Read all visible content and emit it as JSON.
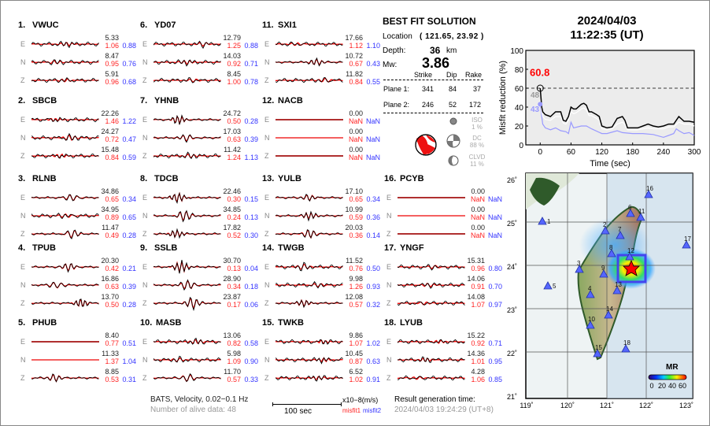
{
  "stations": [
    {
      "num": "1.",
      "name": "VWUC",
      "comps": [
        {
          "c": "E",
          "amp": "5.33",
          "m1": "1.06",
          "m2": "0.88"
        },
        {
          "c": "N",
          "amp": "8.47",
          "m1": "0.95",
          "m2": "0.76"
        },
        {
          "c": "Z",
          "amp": "5.91",
          "m1": "0.96",
          "m2": "0.68"
        }
      ]
    },
    {
      "num": "2.",
      "name": "SBCB",
      "comps": [
        {
          "c": "E",
          "amp": "22.26",
          "m1": "1.46",
          "m2": "1.22"
        },
        {
          "c": "N",
          "amp": "24.27",
          "m1": "0.72",
          "m2": "0.47"
        },
        {
          "c": "Z",
          "amp": "15.48",
          "m1": "0.84",
          "m2": "0.59"
        }
      ]
    },
    {
      "num": "3.",
      "name": "RLNB",
      "comps": [
        {
          "c": "E",
          "amp": "34.86",
          "m1": "0.65",
          "m2": "0.34"
        },
        {
          "c": "N",
          "amp": "34.95",
          "m1": "0.89",
          "m2": "0.65"
        },
        {
          "c": "Z",
          "amp": "11.47",
          "m1": "0.49",
          "m2": "0.28"
        }
      ]
    },
    {
      "num": "4.",
      "name": "TPUB",
      "comps": [
        {
          "c": "E",
          "amp": "20.30",
          "m1": "0.42",
          "m2": "0.21"
        },
        {
          "c": "N",
          "amp": "16.86",
          "m1": "0.63",
          "m2": "0.39"
        },
        {
          "c": "Z",
          "amp": "13.70",
          "m1": "0.50",
          "m2": "0.28"
        }
      ]
    },
    {
      "num": "5.",
      "name": "PHUB",
      "comps": [
        {
          "c": "E",
          "amp": "8.40",
          "m1": "0.77",
          "m2": "0.51",
          "flat": true
        },
        {
          "c": "N",
          "amp": "11.33",
          "m1": "1.37",
          "m2": "1.04",
          "flat": true
        },
        {
          "c": "Z",
          "amp": "8.85",
          "m1": "0.53",
          "m2": "0.31"
        }
      ]
    },
    {
      "num": "6.",
      "name": "YD07",
      "comps": [
        {
          "c": "E",
          "amp": "12.79",
          "m1": "1.25",
          "m2": "0.88"
        },
        {
          "c": "N",
          "amp": "14.03",
          "m1": "0.92",
          "m2": "0.71"
        },
        {
          "c": "Z",
          "amp": "8.45",
          "m1": "1.00",
          "m2": "0.78"
        }
      ]
    },
    {
      "num": "7.",
      "name": "YHNB",
      "comps": [
        {
          "c": "E",
          "amp": "24.72",
          "m1": "0.50",
          "m2": "0.28"
        },
        {
          "c": "N",
          "amp": "17.03",
          "m1": "0.63",
          "m2": "0.39"
        },
        {
          "c": "Z",
          "amp": "11.42",
          "m1": "1.24",
          "m2": "1.13"
        }
      ]
    },
    {
      "num": "8.",
      "name": "TDCB",
      "comps": [
        {
          "c": "E",
          "amp": "22.46",
          "m1": "0.30",
          "m2": "0.15"
        },
        {
          "c": "N",
          "amp": "34.85",
          "m1": "0.24",
          "m2": "0.13"
        },
        {
          "c": "Z",
          "amp": "17.82",
          "m1": "0.52",
          "m2": "0.30"
        }
      ]
    },
    {
      "num": "9.",
      "name": "SSLB",
      "comps": [
        {
          "c": "E",
          "amp": "30.70",
          "m1": "0.13",
          "m2": "0.04"
        },
        {
          "c": "N",
          "amp": "28.90",
          "m1": "0.34",
          "m2": "0.18"
        },
        {
          "c": "Z",
          "amp": "23.87",
          "m1": "0.17",
          "m2": "0.06"
        }
      ]
    },
    {
      "num": "10.",
      "name": "MASB",
      "comps": [
        {
          "c": "E",
          "amp": "13.06",
          "m1": "0.82",
          "m2": "0.58"
        },
        {
          "c": "N",
          "amp": "5.98",
          "m1": "1.09",
          "m2": "0.90"
        },
        {
          "c": "Z",
          "amp": "11.70",
          "m1": "0.57",
          "m2": "0.33"
        }
      ]
    },
    {
      "num": "11.",
      "name": "SXI1",
      "comps": [
        {
          "c": "E",
          "amp": "17.66",
          "m1": "1.12",
          "m2": "1.10"
        },
        {
          "c": "N",
          "amp": "10.72",
          "m1": "0.67",
          "m2": "0.43"
        },
        {
          "c": "Z",
          "amp": "11.82",
          "m1": "0.84",
          "m2": "0.55"
        }
      ]
    },
    {
      "num": "12.",
      "name": "NACB",
      "comps": [
        {
          "c": "E",
          "amp": "0.00",
          "m1": "NaN",
          "m2": "NaN",
          "flat": true
        },
        {
          "c": "N",
          "amp": "0.00",
          "m1": "NaN",
          "m2": "NaN",
          "flat": true
        },
        {
          "c": "Z",
          "amp": "0.00",
          "m1": "NaN",
          "m2": "NaN",
          "flat": true
        }
      ]
    },
    {
      "num": "13.",
      "name": "YULB",
      "comps": [
        {
          "c": "E",
          "amp": "17.10",
          "m1": "0.65",
          "m2": "0.34"
        },
        {
          "c": "N",
          "amp": "10.99",
          "m1": "0.59",
          "m2": "0.36"
        },
        {
          "c": "Z",
          "amp": "20.03",
          "m1": "0.36",
          "m2": "0.14"
        }
      ]
    },
    {
      "num": "14.",
      "name": "TWGB",
      "comps": [
        {
          "c": "E",
          "amp": "11.52",
          "m1": "0.76",
          "m2": "0.50"
        },
        {
          "c": "N",
          "amp": "9.98",
          "m1": "1.26",
          "m2": "0.93"
        },
        {
          "c": "Z",
          "amp": "12.08",
          "m1": "0.57",
          "m2": "0.32"
        }
      ]
    },
    {
      "num": "15.",
      "name": "TWKB",
      "comps": [
        {
          "c": "E",
          "amp": "9.86",
          "m1": "1.07",
          "m2": "1.02"
        },
        {
          "c": "N",
          "amp": "10.45",
          "m1": "0.87",
          "m2": "0.63"
        },
        {
          "c": "Z",
          "amp": "6.52",
          "m1": "1.02",
          "m2": "0.91"
        }
      ]
    },
    {
      "num": "16.",
      "name": "PCYB",
      "comps": [
        {
          "c": "E",
          "amp": "0.00",
          "m1": "NaN",
          "m2": "NaN",
          "flat": true
        },
        {
          "c": "N",
          "amp": "0.00",
          "m1": "NaN",
          "m2": "NaN",
          "flat": true
        },
        {
          "c": "Z",
          "amp": "0.00",
          "m1": "NaN",
          "m2": "NaN",
          "flat": true
        }
      ]
    },
    {
      "num": "17.",
      "name": "YNGF",
      "comps": [
        {
          "c": "E",
          "amp": "15.31",
          "m1": "0.96",
          "m2": "0.80"
        },
        {
          "c": "N",
          "amp": "14.06",
          "m1": "0.91",
          "m2": "0.70"
        },
        {
          "c": "Z",
          "amp": "14.08",
          "m1": "1.07",
          "m2": "0.97"
        }
      ]
    },
    {
      "num": "18.",
      "name": "LYUB",
      "comps": [
        {
          "c": "E",
          "amp": "15.22",
          "m1": "0.92",
          "m2": "0.71"
        },
        {
          "c": "N",
          "amp": "14.36",
          "m1": "1.01",
          "m2": "0.95"
        },
        {
          "c": "Z",
          "amp": "4.28",
          "m1": "1.06",
          "m2": "0.85"
        }
      ]
    }
  ],
  "footer": {
    "network": "BATS, Velocity, 0.02−0.1 Hz",
    "alive": "Number of alive data: 48",
    "scale": "100 sec",
    "unit": "x10−8(m/s)",
    "misfit1": "misfit1",
    "misfit2": "misfit2",
    "gen_label": "Result generation time:",
    "gen_time": "2024/04/03 19:24:29 (UT+8)"
  },
  "solution": {
    "title": "BEST FIT SOLUTION",
    "location_label": "Location",
    "location": "( 121.65,  23.92 )",
    "depth_label": "Depth:",
    "depth": "36",
    "depth_unit": "km",
    "mw_label": "Mw:",
    "mw": "3.86",
    "headers": [
      "Strike",
      "Dip",
      "Rake"
    ],
    "planes": [
      {
        "label": "Plane 1:",
        "strike": "341",
        "dip": "84",
        "rake": "37"
      },
      {
        "label": "Plane 2:",
        "strike": "246",
        "dip": "52",
        "rake": "172"
      }
    ],
    "iso": {
      "label": "ISO",
      "pct": "1  %"
    },
    "dc": {
      "label": "DC",
      "pct": "88 %"
    },
    "clvd": {
      "label": "CLVD",
      "pct": "11 %"
    },
    "colors": {
      "beachball": "#ee1111"
    }
  },
  "header": {
    "date": "2024/04/03",
    "time": "11:22:35  (UT)"
  },
  "chart_data": {
    "type": "line",
    "xlabel": "Time (sec)",
    "ylabel": "Misfit reduction (%)",
    "xlim": [
      -28,
      300
    ],
    "ylim": [
      0,
      100
    ],
    "xticks": [
      0,
      60,
      120,
      180,
      240,
      300
    ],
    "yticks": [
      0,
      20,
      40,
      60,
      80,
      100
    ],
    "reference_line": 60,
    "annotations": {
      "best": "60.8",
      "gray": "48",
      "blue": "43"
    },
    "series": [
      {
        "name": "best",
        "color": "#000000",
        "x": [
          0,
          3,
          5,
          10,
          20,
          30,
          40,
          45,
          50,
          55,
          60,
          65,
          70,
          80,
          85,
          90,
          95,
          100,
          110,
          115,
          120,
          130,
          140,
          150,
          160,
          165,
          170,
          180,
          190,
          200,
          210,
          220,
          230,
          240,
          250,
          260,
          270,
          280,
          290,
          300
        ],
        "y": [
          60,
          40,
          35,
          32,
          30,
          35,
          35,
          26,
          25,
          30,
          40,
          38,
          38,
          43,
          44,
          42,
          35,
          35,
          32,
          30,
          20,
          18,
          19,
          28,
          30,
          26,
          18,
          18,
          18,
          20,
          22,
          20,
          19,
          20,
          22,
          22,
          30,
          25,
          25,
          24
        ]
      },
      {
        "name": "second",
        "color": "#ffffff",
        "x": [
          0,
          3,
          5,
          10,
          20,
          30,
          40,
          45,
          50,
          55,
          60,
          65,
          70,
          80,
          85,
          90,
          95,
          100,
          110,
          115,
          120,
          130,
          140,
          150,
          160,
          165,
          170,
          180,
          190,
          200,
          210,
          220,
          230,
          240,
          250,
          260,
          270,
          280,
          290,
          300
        ],
        "y": [
          48,
          34,
          30,
          27,
          26,
          30,
          30,
          23,
          22,
          26,
          35,
          33,
          34,
          38,
          39,
          37,
          31,
          31,
          28,
          26,
          17,
          16,
          17,
          22,
          24,
          22,
          16,
          16,
          16,
          17,
          18,
          17,
          17,
          17,
          19,
          19,
          24,
          22,
          22,
          20
        ]
      },
      {
        "name": "third",
        "color": "#9999ff",
        "x": [
          0,
          3,
          5,
          10,
          20,
          30,
          40,
          50,
          55,
          60,
          65,
          80,
          90,
          100,
          120,
          130,
          150,
          160,
          180,
          200,
          220,
          240,
          250,
          260,
          265,
          270,
          280,
          290,
          300
        ],
        "y": [
          43,
          30,
          22,
          18,
          16,
          18,
          15,
          14,
          12,
          24,
          18,
          20,
          20,
          17,
          12,
          12,
          15,
          13,
          12,
          12,
          11,
          8,
          10,
          12,
          17,
          15,
          12,
          13,
          10
        ]
      }
    ]
  },
  "map": {
    "lat_ticks": [
      "26˚",
      "25˚",
      "24˚",
      "23˚",
      "22˚",
      "21˚"
    ],
    "lon_ticks": [
      "119˚",
      "120˚",
      "121˚",
      "122˚",
      "123˚"
    ],
    "colorbar_title": "MR",
    "colorbar_ticks": [
      "0",
      "20",
      "40",
      "60"
    ],
    "station_labels": [
      "1",
      "2",
      "3",
      "4",
      "5",
      "6",
      "7",
      "8",
      "9",
      "10",
      "11",
      "12",
      "13",
      "14",
      "15",
      "16",
      "17",
      "18"
    ]
  }
}
